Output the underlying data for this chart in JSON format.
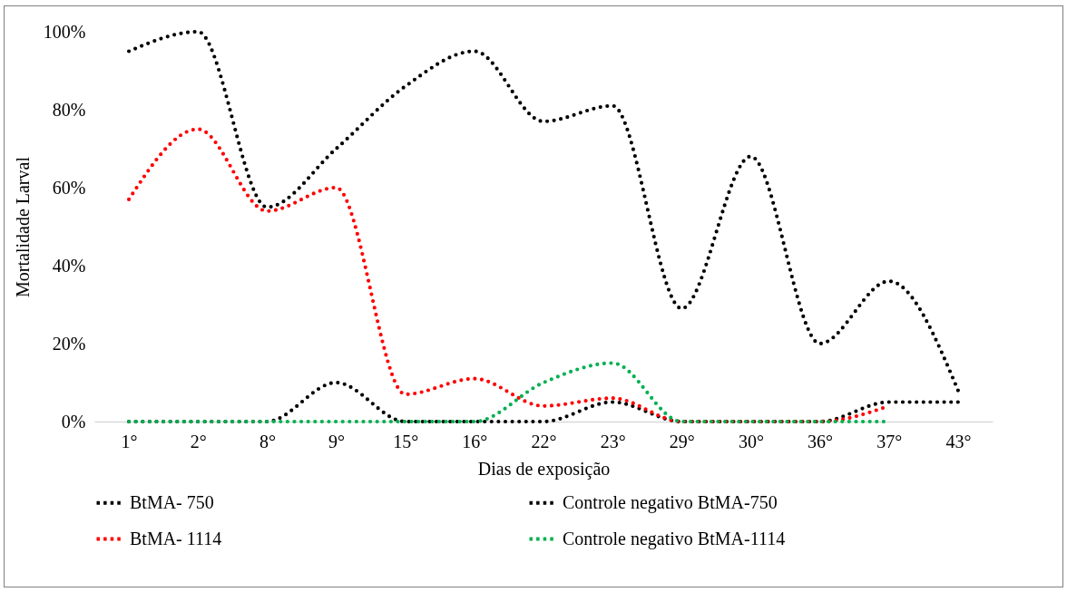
{
  "chart_data": {
    "type": "line",
    "xlabel": "Dias de exposição",
    "ylabel": "Mortalidade Larval",
    "categories": [
      "1°",
      "2°",
      "8°",
      "9°",
      "15°",
      "16°",
      "22°",
      "23°",
      "29°",
      "30°",
      "36°",
      "37°",
      "43°"
    ],
    "series": [
      {
        "name": "BtMA- 750",
        "color": "#000000",
        "values": [
          95,
          100,
          55,
          70,
          86,
          95,
          77,
          81,
          29,
          68,
          20,
          36,
          8
        ]
      },
      {
        "name": "Controle negativo BtMA-750",
        "color": "#000000",
        "values": [
          0,
          0,
          0,
          10,
          0,
          0,
          0,
          5,
          0,
          0,
          0,
          5,
          5
        ]
      },
      {
        "name": "BtMA- 1114",
        "color": "#ff0000",
        "values": [
          57,
          75,
          54,
          60,
          7,
          11,
          4,
          6,
          0,
          0,
          0,
          4,
          null
        ]
      },
      {
        "name": "Controle negativo BtMA-1114",
        "color": "#00b050",
        "values": [
          0,
          0,
          0,
          0,
          0,
          0,
          10,
          15,
          0,
          0,
          0,
          0,
          null
        ]
      }
    ],
    "ylim": [
      0,
      100
    ],
    "yticks": [
      {
        "value": 0,
        "label": "0%"
      },
      {
        "value": 20,
        "label": "20%"
      },
      {
        "value": 40,
        "label": "40%"
      },
      {
        "value": 60,
        "label": "60%"
      },
      {
        "value": 80,
        "label": "80%"
      },
      {
        "value": 100,
        "label": "100%"
      }
    ],
    "legend": "bottom",
    "line_style": "dotted"
  }
}
